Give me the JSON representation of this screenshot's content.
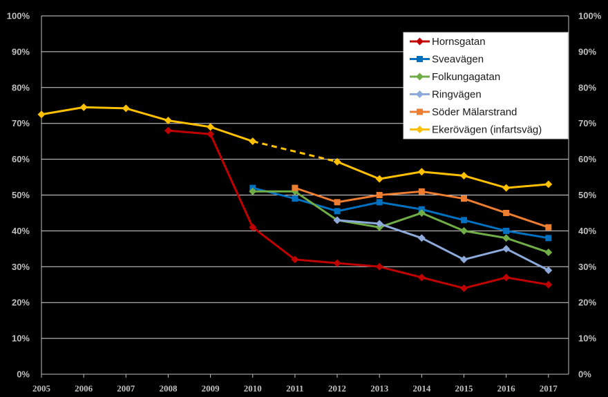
{
  "chart_data": {
    "type": "line",
    "title": "",
    "xlabel": "",
    "ylabel": "",
    "ylim": [
      0,
      100
    ],
    "y_ticks": [
      "0%",
      "10%",
      "20%",
      "30%",
      "40%",
      "50%",
      "60%",
      "70%",
      "80%",
      "90%",
      "100%"
    ],
    "categories": [
      "2005",
      "2006",
      "2007",
      "2008",
      "2009",
      "2010",
      "2011",
      "2012",
      "2013",
      "2014",
      "2015",
      "2016",
      "2017"
    ],
    "legend_position": "top-right",
    "series": [
      {
        "name": "Hornsgatan",
        "color": "#c00000",
        "marker": "diamond",
        "values": [
          null,
          null,
          null,
          68,
          67,
          41,
          32,
          31,
          30,
          27,
          24,
          27,
          25
        ]
      },
      {
        "name": "Sveavägen",
        "color": "#0070c0",
        "marker": "square",
        "values": [
          null,
          null,
          null,
          null,
          null,
          52,
          49,
          45.5,
          48,
          46,
          43,
          40,
          38
        ]
      },
      {
        "name": "Folkungagatan",
        "color": "#70ad47",
        "marker": "diamond",
        "values": [
          null,
          null,
          null,
          null,
          null,
          51,
          51,
          43,
          41,
          45,
          40,
          38,
          34
        ]
      },
      {
        "name": "Ringvägen",
        "color": "#8eaadb",
        "marker": "diamond",
        "values": [
          null,
          null,
          null,
          null,
          null,
          null,
          null,
          43,
          42,
          38,
          32,
          35,
          29
        ]
      },
      {
        "name": "Söder Mälarstrand",
        "color": "#ed7d31",
        "marker": "square",
        "values": [
          null,
          null,
          null,
          null,
          null,
          null,
          52,
          48,
          50,
          51,
          49,
          45,
          41
        ]
      },
      {
        "name": "Ekerövägen (infartsväg)",
        "color": "#ffc000",
        "marker": "diamond",
        "values": [
          72.5,
          74.5,
          74.2,
          70.8,
          69,
          65,
          null,
          59.3,
          54.5,
          56.5,
          55.4,
          52,
          53
        ],
        "dashed_gap": [
          "2010",
          "2012"
        ]
      }
    ]
  }
}
